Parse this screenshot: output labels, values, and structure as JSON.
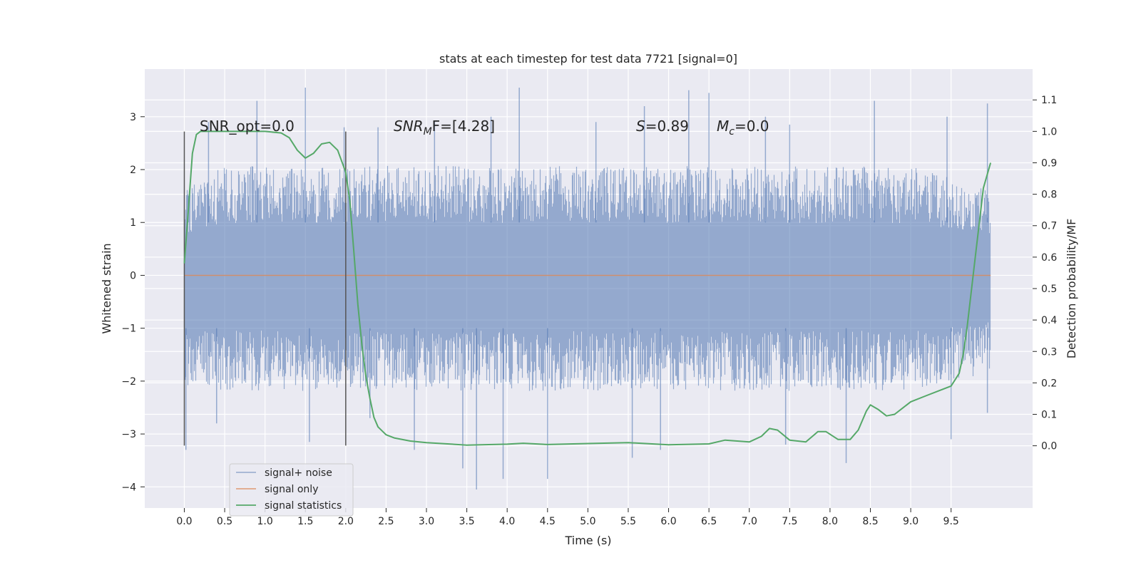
{
  "chart_data": {
    "type": "line",
    "title": "stats at each timestep for test data 7721 [signal=0]",
    "xlabel": "Time (s)",
    "ylabel": "Whitened strain",
    "ylabel_right": "Detection probability/MF",
    "xlim": [
      -0.49,
      10.51
    ],
    "ylim": [
      -4.4,
      3.9
    ],
    "ylim_right": [
      -0.198,
      1.198
    ],
    "xticks": [
      "0.0",
      "0.5",
      "1.0",
      "1.5",
      "2.0",
      "2.5",
      "3.0",
      "3.5",
      "4.0",
      "4.5",
      "5.0",
      "5.5",
      "6.0",
      "6.5",
      "7.0",
      "7.5",
      "8.0",
      "8.5",
      "9.0",
      "9.5"
    ],
    "yticks": [
      "−4",
      "−3",
      "−2",
      "−1",
      "0",
      "1",
      "2",
      "3"
    ],
    "yticks_right": [
      "0.0",
      "0.1",
      "0.2",
      "0.3",
      "0.4",
      "0.5",
      "0.6",
      "0.7",
      "0.8",
      "0.9",
      "1.0",
      "1.1"
    ],
    "grid": true,
    "legend_position": "lower-left",
    "annotations": {
      "snr_opt": "SNR_opt=0.0",
      "snr_mf_base": "SNR",
      "snr_mf_sub": "M",
      "snr_mf_rest": "F=[4.28]",
      "s_sym": "S",
      "s_val": "=0.89",
      "mc_sym": "M",
      "mc_sub": "c",
      "mc_val": "=0.0"
    },
    "vertical_markers": [
      0.0,
      2.0
    ],
    "series": [
      {
        "name": "signal+ noise",
        "color": "#4c72b0",
        "opacity": 0.5,
        "x_range": [
          0.0,
          9.99
        ],
        "envelope_upper": [
          [
            0.0,
            1.4
          ],
          [
            0.5,
            1.8
          ],
          [
            1.0,
            1.8
          ],
          [
            1.5,
            1.8
          ],
          [
            2.0,
            1.8
          ],
          [
            2.5,
            1.8
          ],
          [
            3.0,
            1.8
          ],
          [
            4.0,
            1.8
          ],
          [
            5.0,
            1.8
          ],
          [
            6.0,
            1.8
          ],
          [
            7.0,
            1.8
          ],
          [
            8.0,
            1.8
          ],
          [
            9.0,
            1.8
          ],
          [
            9.99,
            1.4
          ]
        ],
        "envelope_lower": [
          [
            0.0,
            -1.8
          ],
          [
            0.5,
            -1.9
          ],
          [
            1.0,
            -1.9
          ],
          [
            2.0,
            -1.9
          ],
          [
            3.0,
            -1.9
          ],
          [
            4.0,
            -1.9
          ],
          [
            5.0,
            -1.9
          ],
          [
            6.0,
            -1.9
          ],
          [
            7.0,
            -1.9
          ],
          [
            8.0,
            -1.9
          ],
          [
            9.0,
            -1.9
          ],
          [
            9.99,
            -1.6
          ]
        ],
        "peaks_up": [
          [
            0.05,
            1.5
          ],
          [
            0.3,
            2.9
          ],
          [
            0.9,
            3.3
          ],
          [
            1.5,
            3.55
          ],
          [
            1.98,
            2.8
          ],
          [
            2.4,
            2.8
          ],
          [
            3.1,
            2.9
          ],
          [
            3.8,
            3.0
          ],
          [
            4.15,
            3.55
          ],
          [
            5.1,
            2.9
          ],
          [
            5.7,
            3.2
          ],
          [
            6.25,
            3.5
          ],
          [
            6.5,
            3.45
          ],
          [
            7.2,
            3.0
          ],
          [
            7.5,
            2.85
          ],
          [
            8.55,
            3.3
          ],
          [
            9.45,
            3.0
          ],
          [
            9.95,
            3.25
          ]
        ],
        "peaks_down": [
          [
            0.02,
            -3.3
          ],
          [
            0.4,
            -2.8
          ],
          [
            1.55,
            -3.15
          ],
          [
            2.3,
            -2.7
          ],
          [
            2.85,
            -3.3
          ],
          [
            3.45,
            -3.65
          ],
          [
            3.62,
            -4.05
          ],
          [
            3.95,
            -3.85
          ],
          [
            4.5,
            -3.85
          ],
          [
            5.55,
            -3.45
          ],
          [
            5.9,
            -3.3
          ],
          [
            7.45,
            -3.2
          ],
          [
            8.2,
            -3.55
          ],
          [
            9.5,
            -3.1
          ],
          [
            9.95,
            -2.6
          ]
        ]
      },
      {
        "name": "signal only",
        "color": "#dd8452",
        "x": [
          0.0,
          9.99
        ],
        "y": [
          0.0,
          0.0
        ]
      },
      {
        "name": "signal statistics",
        "color": "#55a868",
        "axis": "right",
        "x": [
          0.0,
          0.05,
          0.1,
          0.15,
          0.2,
          0.3,
          0.5,
          0.8,
          1.0,
          1.2,
          1.3,
          1.4,
          1.5,
          1.6,
          1.7,
          1.8,
          1.9,
          2.0,
          2.05,
          2.1,
          2.15,
          2.2,
          2.25,
          2.3,
          2.35,
          2.4,
          2.5,
          2.6,
          2.8,
          3.0,
          3.5,
          4.0,
          4.2,
          4.5,
          5.0,
          5.5,
          6.0,
          6.5,
          6.7,
          7.0,
          7.15,
          7.25,
          7.35,
          7.5,
          7.7,
          7.85,
          7.95,
          8.1,
          8.25,
          8.35,
          8.45,
          8.5,
          8.6,
          8.7,
          8.8,
          8.9,
          9.0,
          9.2,
          9.4,
          9.5,
          9.6,
          9.65,
          9.7,
          9.8,
          9.9,
          9.99
        ],
        "y": [
          0.58,
          0.75,
          0.93,
          0.99,
          1.0,
          1.0,
          1.0,
          1.0,
          1.0,
          0.995,
          0.98,
          0.94,
          0.915,
          0.93,
          0.96,
          0.965,
          0.94,
          0.87,
          0.78,
          0.62,
          0.45,
          0.32,
          0.22,
          0.15,
          0.09,
          0.06,
          0.035,
          0.025,
          0.015,
          0.01,
          0.002,
          0.005,
          0.008,
          0.004,
          0.007,
          0.01,
          0.003,
          0.006,
          0.018,
          0.012,
          0.03,
          0.055,
          0.05,
          0.018,
          0.012,
          0.045,
          0.045,
          0.02,
          0.02,
          0.05,
          0.11,
          0.13,
          0.115,
          0.095,
          0.1,
          0.12,
          0.14,
          0.16,
          0.18,
          0.19,
          0.23,
          0.29,
          0.38,
          0.6,
          0.82,
          0.9
        ]
      }
    ]
  },
  "legend": [
    {
      "label": "signal+ noise",
      "color": "#4c72b0"
    },
    {
      "label": "signal only",
      "color": "#dd8452"
    },
    {
      "label": "signal statistics",
      "color": "#55a868"
    }
  ]
}
